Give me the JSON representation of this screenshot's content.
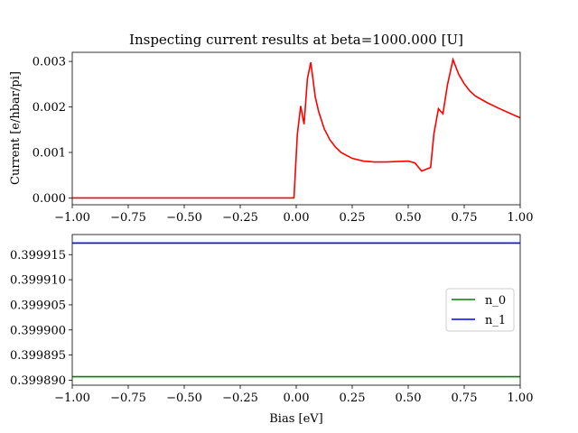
{
  "chart_data": [
    {
      "type": "line",
      "title": "Inspecting current results at beta=1000.000 [U]",
      "xlabel": "",
      "ylabel": "Current [e/hbar/pi]",
      "xlim": [
        -1.0,
        1.0
      ],
      "ylim": [
        -0.00015,
        0.0032
      ],
      "xticks": [
        "−1.00",
        "−0.75",
        "−0.50",
        "−0.25",
        "0.00",
        "0.25",
        "0.50",
        "0.75",
        "1.00"
      ],
      "yticks": [
        "0.000",
        "0.001",
        "0.002",
        "0.003"
      ],
      "ytick_values": [
        0.0,
        0.001,
        0.002,
        0.003
      ],
      "grid": false,
      "series": [
        {
          "color": "#ff0000",
          "x": [
            -1.0,
            -0.01,
            0.005,
            0.02,
            0.035,
            0.05,
            0.065,
            0.085,
            0.1,
            0.125,
            0.15,
            0.175,
            0.2,
            0.25,
            0.3,
            0.35,
            0.4,
            0.45,
            0.5,
            0.53,
            0.56,
            0.575,
            0.6,
            0.615,
            0.635,
            0.655,
            0.675,
            0.7,
            0.725,
            0.75,
            0.775,
            0.8,
            0.85,
            0.9,
            0.95,
            1.0
          ],
          "y": [
            0.0,
            0.0,
            0.0014,
            0.00202,
            0.00162,
            0.00262,
            0.00298,
            0.00222,
            0.0019,
            0.00152,
            0.00128,
            0.00112,
            0.001,
            0.00087,
            0.00081,
            0.00079,
            0.00079,
            0.0008,
            0.00081,
            0.00077,
            0.00059,
            0.00062,
            0.00067,
            0.00142,
            0.00196,
            0.00185,
            0.00248,
            0.00304,
            0.00272,
            0.00251,
            0.00235,
            0.00224,
            0.0021,
            0.00198,
            0.00187,
            0.00176
          ]
        }
      ]
    },
    {
      "type": "line",
      "title": "",
      "xlabel": "Bias [eV]",
      "ylabel": "",
      "xlim": [
        -1.0,
        1.0
      ],
      "ylim": [
        0.399889,
        0.399919
      ],
      "xticks": [
        "−1.00",
        "−0.75",
        "−0.50",
        "−0.25",
        "0.00",
        "0.25",
        "0.50",
        "0.75",
        "1.00"
      ],
      "yticks": [
        "0.399890",
        "0.399895",
        "0.399900",
        "0.399905",
        "0.399910",
        "0.399915"
      ],
      "ytick_values": [
        0.39989,
        0.399895,
        0.3999,
        0.399905,
        0.39991,
        0.399915
      ],
      "grid": false,
      "legend": "center-right",
      "series": [
        {
          "name": "n_0",
          "color": "#008000",
          "x": [
            -1.0,
            1.0
          ],
          "y": [
            0.3998907,
            0.3998907
          ]
        },
        {
          "name": "n_1",
          "color": "#0000ff",
          "x": [
            -1.0,
            1.0
          ],
          "y": [
            0.3999173,
            0.3999173
          ]
        }
      ]
    }
  ]
}
